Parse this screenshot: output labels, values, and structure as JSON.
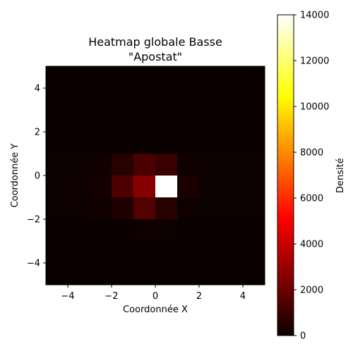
{
  "chart_data": {
    "type": "heatmap",
    "title_line1": "Heatmap globale Basse",
    "title_line2": "\"Apostat\"",
    "xlabel": "Coordonnée X",
    "ylabel": "Coordonnée Y",
    "colorbar_label": "Densité",
    "colormap": "hot",
    "xlim": [
      -5,
      5
    ],
    "ylim": [
      -5,
      5
    ],
    "vmin": 0,
    "vmax": 14000,
    "x_ticks": [
      -4,
      -2,
      0,
      2,
      4
    ],
    "x_tick_labels": [
      "−4",
      "−2",
      "0",
      "2",
      "4"
    ],
    "y_ticks": [
      4,
      2,
      0,
      -2,
      -4
    ],
    "y_tick_labels": [
      "4",
      "2",
      "0",
      "−2",
      "−4"
    ],
    "colorbar_ticks": [
      0,
      2000,
      4000,
      6000,
      8000,
      10000,
      12000,
      14000
    ],
    "colorbar_tick_labels": [
      "0",
      "2000",
      "4000",
      "6000",
      "8000",
      "10000",
      "12000",
      "14000"
    ],
    "x_bin_edges": [
      -5,
      -4,
      -3,
      -2,
      -1,
      0,
      1,
      2,
      3,
      4,
      5
    ],
    "y_bin_edges": [
      5,
      4,
      3,
      2,
      1,
      0,
      -1,
      -2,
      -3,
      -4,
      -5
    ],
    "density_rows_top_to_bottom": [
      [
        0,
        0,
        0,
        0,
        0,
        0,
        0,
        0,
        0,
        0
      ],
      [
        0,
        0,
        0,
        0,
        0,
        0,
        0,
        0,
        0,
        0
      ],
      [
        0,
        0,
        0,
        0,
        0,
        0,
        0,
        0,
        0,
        0
      ],
      [
        0,
        0,
        0,
        0,
        0,
        0,
        0,
        0,
        0,
        0
      ],
      [
        30,
        60,
        120,
        600,
        1300,
        950,
        80,
        40,
        30,
        20
      ],
      [
        40,
        80,
        200,
        1400,
        2600,
        14000,
        350,
        60,
        30,
        20
      ],
      [
        30,
        60,
        120,
        450,
        1500,
        600,
        80,
        40,
        20,
        20
      ],
      [
        0,
        0,
        0,
        0,
        80,
        30,
        0,
        0,
        0,
        0
      ],
      [
        0,
        0,
        0,
        0,
        0,
        0,
        0,
        0,
        0,
        0
      ],
      [
        0,
        0,
        0,
        0,
        0,
        0,
        0,
        0,
        0,
        0
      ]
    ]
  }
}
